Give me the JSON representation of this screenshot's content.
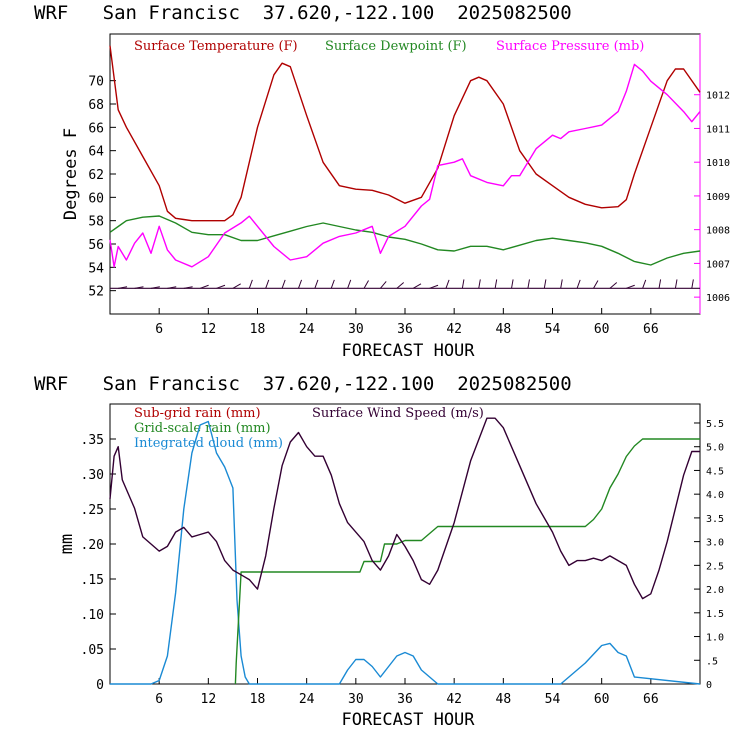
{
  "colors": {
    "temperature": "#b00000",
    "dewpoint": "#228822",
    "pressure": "#ff00ff",
    "wind_barb": "#330033",
    "subgrid_rain": "#b00000",
    "gridscale_rain": "#228822",
    "cloud": "#1a8ad4",
    "wind_speed": "#330033"
  },
  "chart_data": [
    {
      "type": "line",
      "title": "WRF   San Francisc  37.620,-122.100  2025082500",
      "xlabel": "FORECAST HOUR",
      "ylabel": "Degrees F",
      "xlim": [
        0,
        72
      ],
      "ylim": [
        50,
        74
      ],
      "y2lim": [
        1005.5,
        1013.8
      ],
      "grid": false,
      "legend": "top",
      "x_ticks": [
        "6",
        "12",
        "18",
        "24",
        "30",
        "36",
        "42",
        "48",
        "54",
        "60",
        "66"
      ],
      "y_ticks": [
        "52",
        "54",
        "56",
        "58",
        "60",
        "62",
        "64",
        "66",
        "68",
        "70"
      ],
      "y2_ticks": [
        "1006",
        "1007",
        "1008",
        "1009",
        "1010",
        "1011",
        "1012"
      ],
      "legend_labels": [
        "Surface Temperature (F)",
        "Surface Dewpoint (F)",
        "Surface Pressure (mb)"
      ],
      "series": [
        {
          "name": "Surface Temperature (F)",
          "axis": "left",
          "x": [
            0,
            1,
            2,
            4,
            6,
            7,
            8,
            9,
            10,
            12,
            14,
            15,
            16,
            18,
            20,
            21,
            22,
            24,
            26,
            28,
            30,
            32,
            34,
            36,
            38,
            40,
            42,
            44,
            45,
            46,
            48,
            50,
            52,
            54,
            56,
            58,
            60,
            62,
            63,
            64,
            66,
            68,
            69,
            70,
            72
          ],
          "y": [
            73,
            67.5,
            66,
            63.5,
            61,
            58.8,
            58.2,
            58.1,
            58,
            58,
            58,
            58.5,
            60,
            66,
            70.5,
            71.5,
            71.2,
            67,
            63,
            61,
            60.7,
            60.6,
            60.2,
            59.5,
            60,
            62.5,
            67,
            70,
            70.3,
            70,
            68,
            64,
            62,
            61,
            60,
            59.4,
            59.1,
            59.2,
            59.8,
            62,
            66,
            70,
            71,
            71,
            69
          ]
        },
        {
          "name": "Surface Dewpoint (F)",
          "axis": "left",
          "x": [
            0,
            1,
            2,
            4,
            6,
            8,
            10,
            12,
            14,
            16,
            18,
            20,
            22,
            24,
            26,
            28,
            30,
            32,
            34,
            36,
            38,
            40,
            42,
            44,
            46,
            48,
            50,
            52,
            54,
            56,
            58,
            60,
            62,
            64,
            66,
            68,
            70,
            72
          ],
          "y": [
            57,
            57.5,
            58,
            58.3,
            58.4,
            57.8,
            57,
            56.8,
            56.8,
            56.3,
            56.3,
            56.7,
            57.1,
            57.5,
            57.8,
            57.5,
            57.2,
            57,
            56.6,
            56.4,
            56,
            55.5,
            55.4,
            55.8,
            55.8,
            55.5,
            55.9,
            56.3,
            56.5,
            56.3,
            56.1,
            55.8,
            55.2,
            54.5,
            54.2,
            54.8,
            55.2,
            55.4
          ]
        },
        {
          "name": "Surface Pressure (mb)",
          "axis": "right",
          "x": [
            0,
            0.5,
            1,
            2,
            3,
            4,
            5,
            6,
            7,
            8,
            10,
            12,
            14,
            16,
            17,
            18,
            20,
            22,
            24,
            26,
            28,
            30,
            32,
            33,
            34,
            36,
            38,
            39,
            40,
            42,
            43,
            44,
            46,
            48,
            49,
            50,
            52,
            54,
            55,
            56,
            58,
            60,
            62,
            63,
            64,
            65,
            66,
            68,
            70,
            71,
            72
          ],
          "y": [
            1007.7,
            1006.9,
            1007.5,
            1007.1,
            1007.6,
            1007.9,
            1007.3,
            1008.1,
            1007.4,
            1007.1,
            1006.9,
            1007.2,
            1007.9,
            1008.2,
            1008.4,
            1008.1,
            1007.5,
            1007.1,
            1007.2,
            1007.6,
            1007.8,
            1007.9,
            1008.1,
            1007.3,
            1007.8,
            1008.1,
            1008.7,
            1008.9,
            1009.9,
            1010.0,
            1010.1,
            1009.6,
            1009.4,
            1009.3,
            1009.6,
            1009.6,
            1010.4,
            1010.8,
            1010.7,
            1010.9,
            1011.0,
            1011.1,
            1011.5,
            1012.1,
            1012.9,
            1012.7,
            1012.4,
            1012.0,
            1011.5,
            1011.2,
            1011.5
          ]
        }
      ],
      "wind_barbs": {
        "y": 52.2,
        "x": [
          1,
          3,
          5,
          7,
          9,
          11,
          13,
          15,
          17,
          19,
          21,
          23,
          25,
          27,
          29,
          31,
          33,
          35,
          37,
          39,
          41,
          43,
          45,
          47,
          49,
          51,
          53,
          55,
          57,
          59,
          61,
          63,
          65,
          67,
          69,
          71
        ],
        "direction": [
          260,
          260,
          260,
          260,
          260,
          250,
          250,
          240,
          200,
          200,
          200,
          200,
          200,
          200,
          200,
          210,
          220,
          230,
          240,
          250,
          200,
          190,
          190,
          190,
          190,
          190,
          190,
          190,
          200,
          210,
          230,
          250,
          200,
          190,
          190,
          190
        ],
        "flag_count": [
          1,
          1,
          1,
          1,
          1,
          1,
          1,
          1,
          1,
          1,
          1,
          1,
          1,
          1,
          1,
          1,
          1,
          1,
          1,
          1,
          1,
          1,
          1,
          1,
          1,
          1,
          1,
          1,
          1,
          1,
          1,
          1,
          1,
          1,
          1,
          1
        ]
      }
    },
    {
      "type": "line",
      "title": "WRF   San Francisc  37.620,-122.100  2025082500",
      "xlabel": "FORECAST HOUR",
      "ylabel": "mm",
      "xlim": [
        0,
        72
      ],
      "ylim": [
        0,
        0.4
      ],
      "y2lim": [
        0,
        5.9
      ],
      "grid": false,
      "legend": "top-left",
      "x_ticks": [
        "6",
        "12",
        "18",
        "24",
        "30",
        "36",
        "42",
        "48",
        "54",
        "60",
        "66"
      ],
      "y_ticks": [
        "0",
        ".05",
        ".10",
        ".15",
        ".20",
        ".25",
        ".30",
        ".35"
      ],
      "y2_ticks": [
        "0",
        ".5",
        "1.0",
        "1.5",
        "2.0",
        "2.5",
        "3.0",
        "3.5",
        "4.0",
        "4.5",
        "5.0",
        "5.5"
      ],
      "legend_labels": [
        "Sub-grid rain (mm)",
        "Grid-scale rain (mm)",
        "Integrated cloud (mm)",
        "Surface Wind Speed (m/s)"
      ],
      "series": [
        {
          "name": "Integrated cloud (mm)",
          "axis": "left",
          "x": [
            0,
            5,
            6,
            7,
            8,
            9,
            10,
            11,
            12,
            13,
            14,
            15,
            15.5,
            16,
            16.5,
            17,
            28,
            29,
            30,
            31,
            32,
            33,
            34,
            35,
            36,
            37,
            38,
            39,
            40,
            55,
            56,
            58,
            60,
            61,
            62,
            63,
            64,
            72
          ],
          "y": [
            0,
            0,
            0.005,
            0.04,
            0.13,
            0.25,
            0.33,
            0.37,
            0.375,
            0.33,
            0.31,
            0.28,
            0.12,
            0.04,
            0.01,
            0,
            0,
            0.02,
            0.035,
            0.035,
            0.025,
            0.01,
            0.025,
            0.04,
            0.045,
            0.04,
            0.02,
            0.01,
            0,
            0,
            0.01,
            0.03,
            0.055,
            0.058,
            0.045,
            0.04,
            0.01,
            0
          ]
        },
        {
          "name": "Grid-scale rain (mm)",
          "axis": "left",
          "x": [
            15.3,
            15.4,
            16,
            17,
            30.5,
            31,
            33,
            33.5,
            35,
            36,
            38,
            39,
            40,
            41,
            58,
            59,
            60,
            61,
            62,
            63,
            64,
            65,
            72
          ],
          "y": [
            0,
            0.03,
            0.16,
            0.16,
            0.16,
            0.175,
            0.175,
            0.2,
            0.2,
            0.205,
            0.205,
            0.215,
            0.225,
            0.225,
            0.225,
            0.235,
            0.25,
            0.28,
            0.3,
            0.325,
            0.34,
            0.35,
            0.35
          ]
        },
        {
          "name": "Surface Wind Speed (m/s)",
          "axis": "right",
          "x": [
            0,
            0.5,
            1,
            1.5,
            2,
            3,
            4,
            5,
            6,
            7,
            8,
            9,
            10,
            11,
            12,
            13,
            14,
            15,
            16,
            17,
            18,
            19,
            20,
            21,
            22,
            23,
            24,
            25,
            26,
            27,
            28,
            29,
            30,
            31,
            32,
            33,
            34,
            35,
            36,
            37,
            38,
            39,
            40,
            42,
            44,
            46,
            47,
            48,
            50,
            52,
            54,
            55,
            56,
            57,
            58,
            59,
            60,
            61,
            62,
            63,
            64,
            65,
            66,
            67,
            68,
            69,
            70,
            71,
            72
          ],
          "y": [
            3.9,
            4.8,
            5.0,
            4.3,
            4.1,
            3.7,
            3.1,
            2.95,
            2.8,
            2.9,
            3.2,
            3.3,
            3.1,
            3.15,
            3.2,
            3.0,
            2.6,
            2.4,
            2.3,
            2.2,
            2.0,
            2.7,
            3.7,
            4.6,
            5.1,
            5.3,
            5.0,
            4.8,
            4.8,
            4.4,
            3.8,
            3.4,
            3.2,
            3.0,
            2.6,
            2.4,
            2.7,
            3.15,
            2.9,
            2.6,
            2.2,
            2.1,
            2.4,
            3.4,
            4.7,
            5.6,
            5.6,
            5.4,
            4.6,
            3.8,
            3.2,
            2.8,
            2.5,
            2.6,
            2.6,
            2.65,
            2.6,
            2.7,
            2.6,
            2.5,
            2.1,
            1.8,
            1.9,
            2.4,
            3.0,
            3.7,
            4.4,
            4.9,
            4.9
          ]
        }
      ]
    }
  ]
}
